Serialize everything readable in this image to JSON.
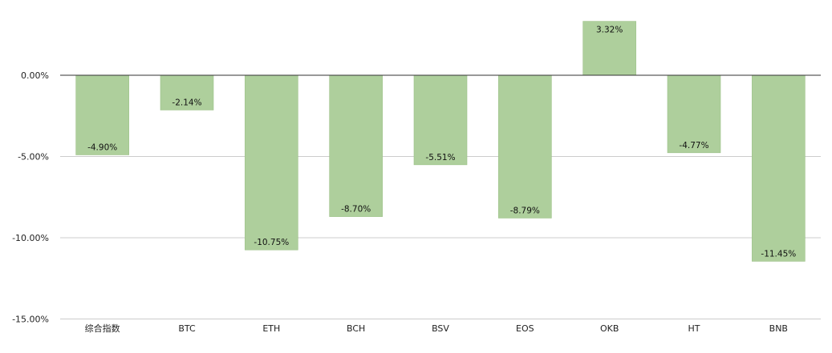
{
  "chart_data": {
    "type": "bar",
    "title": "",
    "xlabel": "",
    "ylabel": "",
    "categories": [
      "综合指数",
      "BTC",
      "ETH",
      "BCH",
      "BSV",
      "EOS",
      "OKB",
      "HT",
      "BNB"
    ],
    "values": [
      -4.9,
      -2.14,
      -10.75,
      -8.7,
      -5.51,
      -8.79,
      3.32,
      -4.77,
      -11.45
    ],
    "data_labels": [
      "-4.90%",
      "-2.14%",
      "-10.75%",
      "-8.70%",
      "-5.51%",
      "-8.79%",
      "3.32%",
      "-4.77%",
      "-11.45%"
    ],
    "yticks": [
      0,
      -5,
      -10,
      -15
    ],
    "ytick_labels": [
      "0.00%",
      "-5.00%",
      "-10.00%",
      "-15.00%"
    ],
    "ylim": [
      -15,
      4.7
    ],
    "grid": true,
    "legend": "none",
    "colors": {
      "bar": "#aecf9c",
      "grid": "#cccccc",
      "zero_line": "#333333",
      "text": "#222222"
    }
  }
}
